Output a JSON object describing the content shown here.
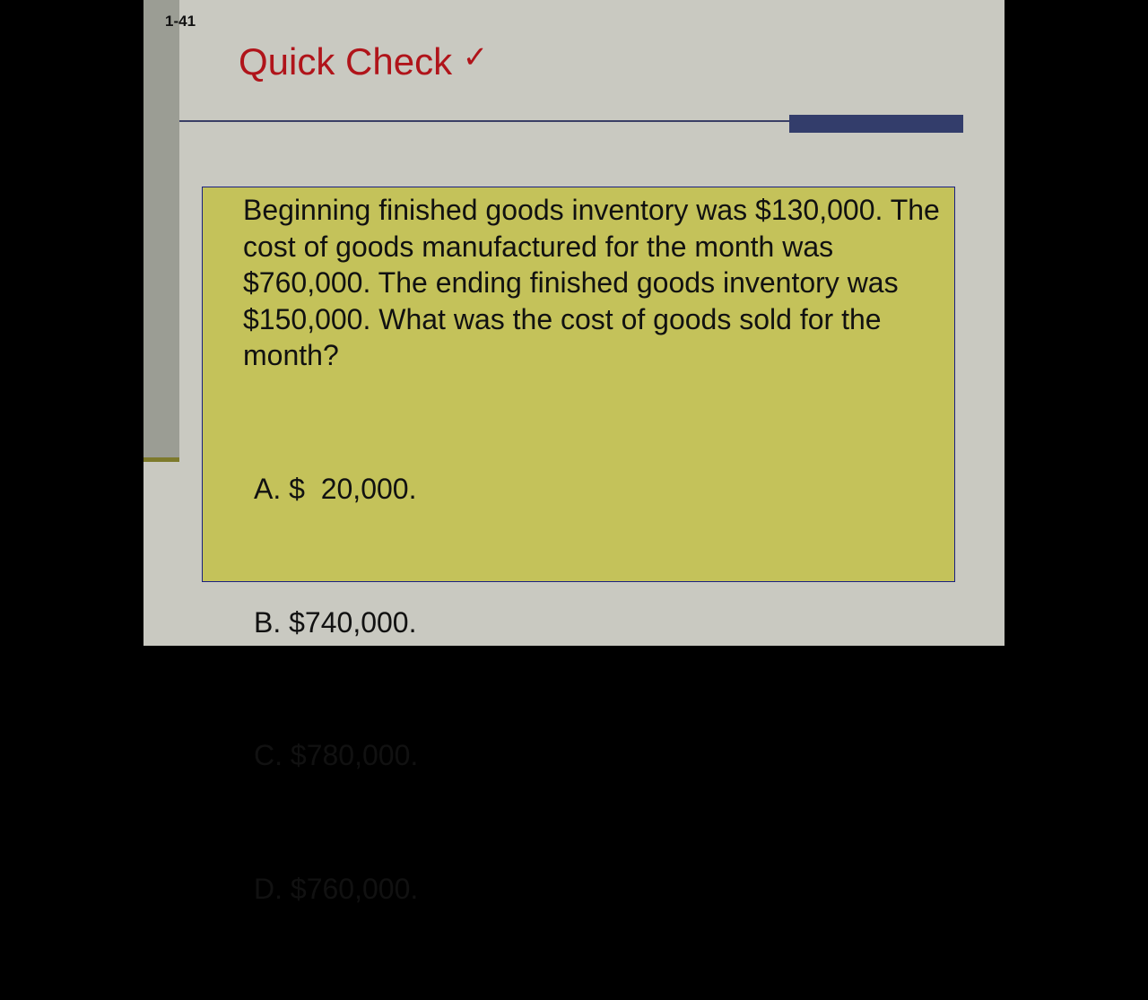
{
  "slide": {
    "number": "1-41",
    "title": "Quick Check",
    "title_icon": "checkmark-icon",
    "title_icon_glyph": "✓",
    "question": "Beginning finished goods inventory was $130,000. The cost of goods manufactured for the month was $760,000. The ending finished goods inventory was $150,000. What was the cost of goods sold for the month?",
    "options": [
      "A. $  20,000.",
      "B. $740,000.",
      "C. $780,000.",
      "D. $760,000."
    ],
    "colors": {
      "title": "#b0141a",
      "box": "#c4c25a",
      "accent_bar": "#333d6b",
      "background": "#c9c9c1"
    }
  }
}
